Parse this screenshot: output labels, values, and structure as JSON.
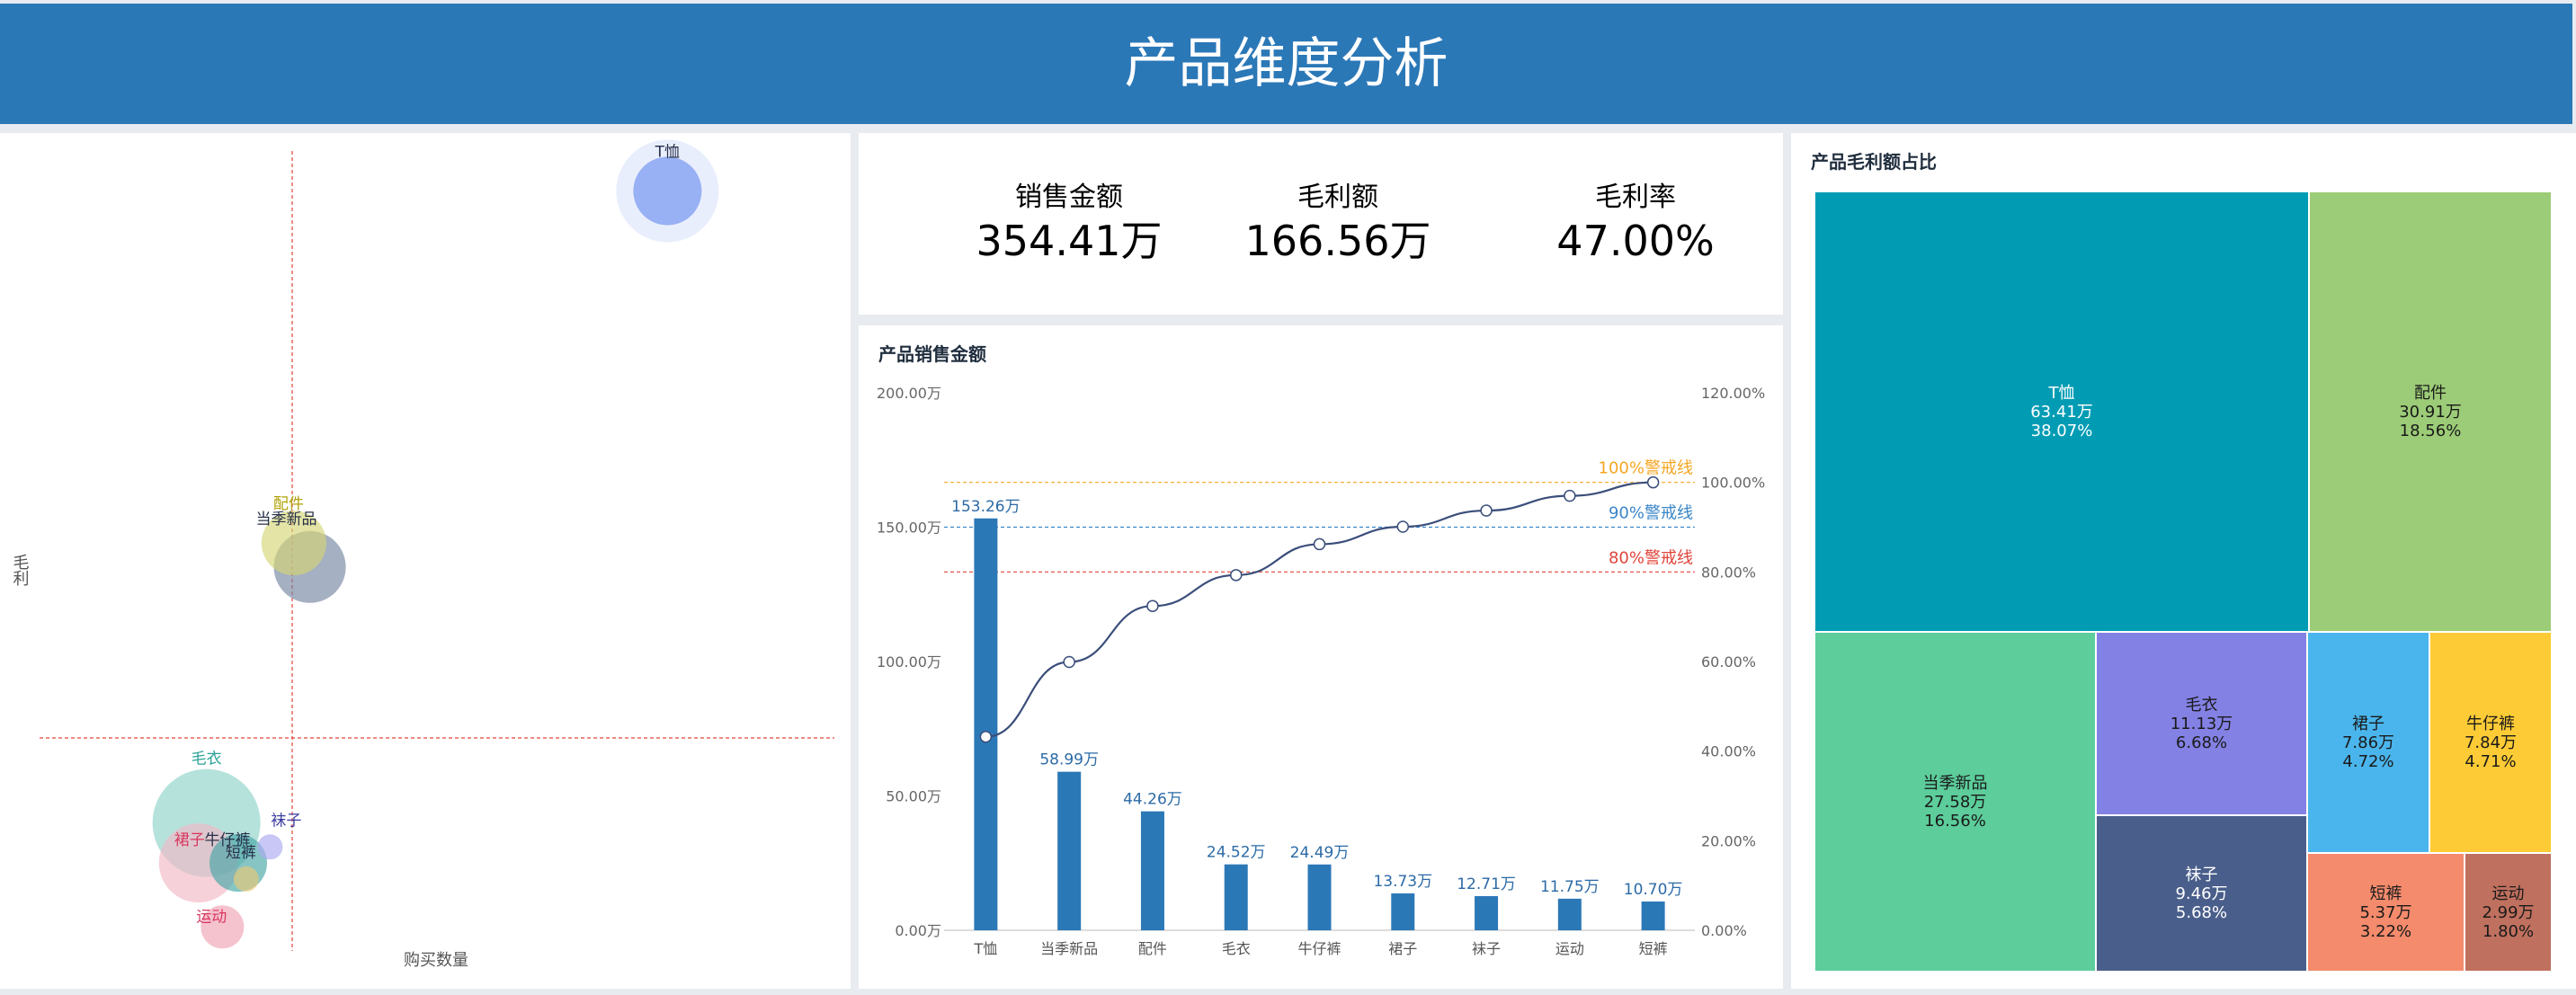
{
  "header": {
    "title": "产品维度分析"
  },
  "kpis": [
    {
      "label": "销售金额",
      "value": "354.41万"
    },
    {
      "label": "毛利额",
      "value": "166.56万"
    },
    {
      "label": "毛利率",
      "value": "47.00%"
    }
  ],
  "pareto": {
    "title": "产品销售金额"
  },
  "treemap": {
    "title": "产品毛利额占比",
    "cells": [
      {
        "name": "T恤",
        "amount": "63.41万",
        "pct": "38.07%",
        "color": "#019cb4",
        "tone": "light"
      },
      {
        "name": "配件",
        "amount": "30.91万",
        "pct": "18.56%",
        "color": "#9ccc77",
        "tone": "dark"
      },
      {
        "name": "当季新品",
        "amount": "27.58万",
        "pct": "16.56%",
        "color": "#5ccd9b",
        "tone": "dark"
      },
      {
        "name": "毛衣",
        "amount": "11.13万",
        "pct": "6.68%",
        "color": "#8381e4",
        "tone": "dark"
      },
      {
        "name": "袜子",
        "amount": "9.46万",
        "pct": "5.68%",
        "color": "#4a5e8b",
        "tone": "light"
      },
      {
        "name": "裙子",
        "amount": "7.86万",
        "pct": "4.72%",
        "color": "#4ab5ec",
        "tone": "dark"
      },
      {
        "name": "牛仔裤",
        "amount": "7.84万",
        "pct": "4.71%",
        "color": "#fdcb35",
        "tone": "dark"
      },
      {
        "name": "短裤",
        "amount": "5.37万",
        "pct": "3.22%",
        "color": "#f48b6c",
        "tone": "dark"
      },
      {
        "name": "运动",
        "amount": "2.99万",
        "pct": "1.80%",
        "color": "#c0705e",
        "tone": "dark"
      }
    ]
  },
  "chart_data": [
    {
      "type": "scatter",
      "subtype": "bubble",
      "title": "",
      "xlabel": "购买数量",
      "ylabel": "毛利",
      "axis_ticks_shown": false,
      "reference_lines": [
        "vertical dashed",
        "horizontal dashed"
      ],
      "points": [
        {
          "name": "T恤",
          "x": 0.79,
          "y": 0.95,
          "size": 38,
          "color": "#6d8ff0"
        },
        {
          "name": "配件",
          "x": 0.32,
          "y": 0.51,
          "size": 36,
          "color": "#d4d675"
        },
        {
          "name": "当季新品",
          "x": 0.34,
          "y": 0.48,
          "size": 40,
          "color": "#7585a2"
        },
        {
          "name": "毛衣",
          "x": 0.21,
          "y": 0.16,
          "size": 60,
          "color": "#8fd3c9"
        },
        {
          "name": "裙子",
          "x": 0.2,
          "y": 0.11,
          "size": 44,
          "color": "#f3b8c6"
        },
        {
          "name": "牛仔裤",
          "x": 0.25,
          "y": 0.11,
          "size": 32,
          "color": "#46a6a6"
        },
        {
          "name": "袜子",
          "x": 0.29,
          "y": 0.13,
          "size": 14,
          "color": "#aaa9f0"
        },
        {
          "name": "短裤",
          "x": 0.26,
          "y": 0.09,
          "size": 14,
          "color": "#e9c777"
        },
        {
          "name": "运动",
          "x": 0.23,
          "y": 0.03,
          "size": 24,
          "color": "#f0a3b4"
        }
      ]
    },
    {
      "type": "bar",
      "subtype": "pareto",
      "title": "产品销售金额",
      "categories": [
        "T恤",
        "当季新品",
        "配件",
        "毛衣",
        "牛仔裤",
        "裙子",
        "袜子",
        "运动",
        "短裤"
      ],
      "series": [
        {
          "name": "",
          "type": "bar",
          "values": [
            153.26,
            58.99,
            44.26,
            24.52,
            24.49,
            13.73,
            12.71,
            11.75,
            10.7
          ],
          "labels": [
            "153.26万",
            "58.99万",
            "44.26万",
            "24.52万",
            "24.49万",
            "13.73万",
            "12.71万",
            "11.75万",
            "10.70万"
          ],
          "color": "#2b78b7"
        },
        {
          "name": "",
          "type": "line",
          "axis": "right",
          "values": [
            43.2,
            59.9,
            72.4,
            79.3,
            86.2,
            90.1,
            93.7,
            97.0,
            100.0
          ],
          "color": "#3a4e7a"
        }
      ],
      "y_left": {
        "min": 0,
        "max": 200,
        "ticks": [
          "0.00万",
          "50.00万",
          "100.00万",
          "150.00万",
          "200.00万"
        ]
      },
      "y_right": {
        "min": 0,
        "max": 120,
        "ticks": [
          "0.00%",
          "20.00%",
          "40.00%",
          "60.00%",
          "80.00%",
          "100.00%",
          "120.00%"
        ]
      },
      "ref_lines": [
        {
          "label": "100%警戒线",
          "value": 100,
          "color": "#f5a623"
        },
        {
          "label": "90%警戒线",
          "value": 90,
          "color": "#3a86c8"
        },
        {
          "label": "80%警戒线",
          "value": 80,
          "color": "#e0443a"
        }
      ]
    }
  ]
}
